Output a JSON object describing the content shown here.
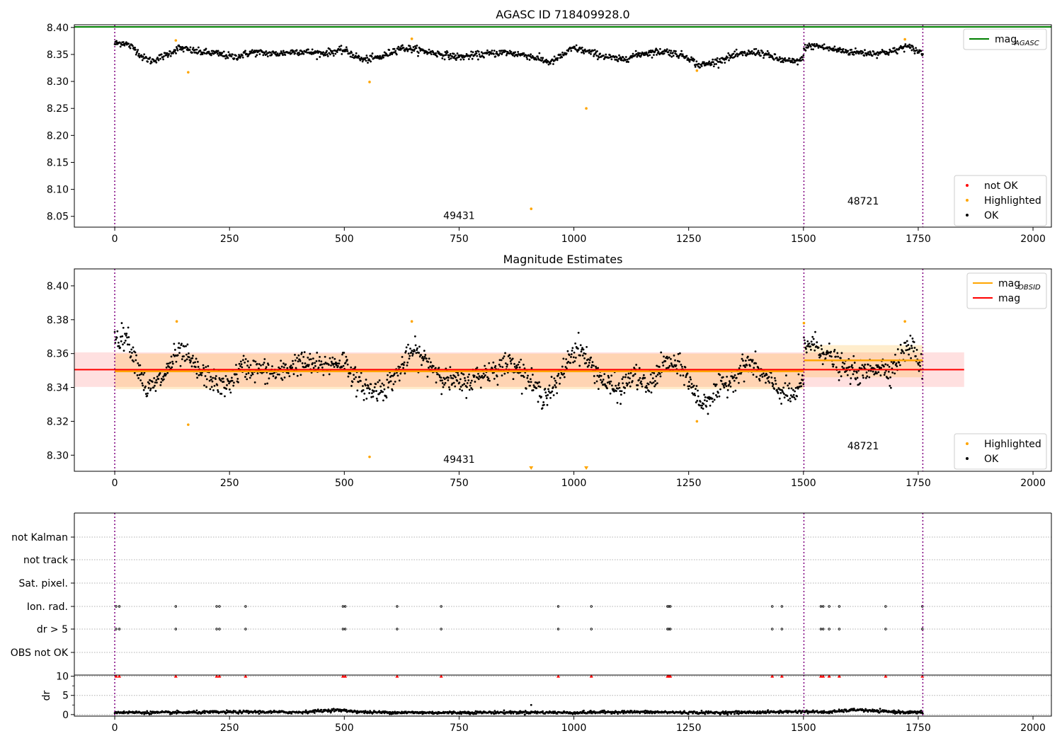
{
  "chart_data": [
    {
      "panel": "agasc-magnitude",
      "type": "scatter",
      "title": "AGASC ID 718409928.0",
      "xlim": [
        -88,
        2040
      ],
      "ylim": [
        8.03,
        8.405
      ],
      "x_ticks": [
        "0",
        "250",
        "500",
        "750",
        "1000",
        "1250",
        "1500",
        "1750",
        "2000"
      ],
      "y_ticks": [
        "8.05",
        "8.10",
        "8.15",
        "8.20",
        "8.25",
        "8.30",
        "8.35",
        "8.40"
      ],
      "grid": false,
      "legend_upper": {
        "placement": "top-right",
        "entries": [
          {
            "label": "mag",
            "sub": "AGASC",
            "color": "#008000"
          }
        ]
      },
      "legend_lower": {
        "placement": "bottom-right",
        "entries": [
          {
            "label": "not OK",
            "color": "#ff0000"
          },
          {
            "label": "Highlighted",
            "color": "#ffa500"
          },
          {
            "label": "OK",
            "color": "#000000"
          }
        ]
      },
      "mag_agasc": 8.401,
      "obsid_boundaries": [
        0,
        1501,
        1760
      ],
      "obsids": [
        {
          "label": "49431",
          "x": 750,
          "y": 8.045
        },
        {
          "label": "48721",
          "x": 1630,
          "y": 8.072
        }
      ],
      "ok_segments": [
        {
          "x": [
            0,
            20,
            45,
            60,
            80,
            110,
            140,
            180,
            220,
            260,
            300,
            350,
            400,
            450,
            500,
            540,
            580,
            620,
            650,
            700,
            750,
            800,
            850,
            900,
            950,
            1000,
            1030,
            1060,
            1100,
            1150,
            1200,
            1250,
            1270,
            1290,
            1350,
            1400,
            1450,
            1480,
            1500
          ],
          "y": [
            8.37,
            8.372,
            8.36,
            8.345,
            8.338,
            8.348,
            8.362,
            8.355,
            8.352,
            8.345,
            8.354,
            8.351,
            8.356,
            8.352,
            8.358,
            8.34,
            8.345,
            8.362,
            8.36,
            8.352,
            8.345,
            8.35,
            8.354,
            8.348,
            8.335,
            8.362,
            8.355,
            8.348,
            8.34,
            8.352,
            8.356,
            8.345,
            8.33,
            8.332,
            8.348,
            8.355,
            8.34,
            8.336,
            8.342
          ]
        },
        {
          "x": [
            1501,
            1530,
            1560,
            1600,
            1650,
            1700,
            1720,
            1740,
            1760
          ],
          "y": [
            8.364,
            8.366,
            8.36,
            8.355,
            8.352,
            8.356,
            8.365,
            8.36,
            8.352
          ]
        }
      ],
      "ok_noise": 0.0055,
      "highlighted": [
        {
          "x": 133,
          "y": 8.376
        },
        {
          "x": 160,
          "y": 8.317
        },
        {
          "x": 555,
          "y": 8.299
        },
        {
          "x": 647,
          "y": 8.379
        },
        {
          "x": 907,
          "y": 8.064
        },
        {
          "x": 1027,
          "y": 8.25
        },
        {
          "x": 1268,
          "y": 8.32
        },
        {
          "x": 1721,
          "y": 8.378
        }
      ]
    },
    {
      "panel": "magnitude-estimates",
      "type": "scatter",
      "title": "Magnitude Estimates",
      "xlim": [
        -88,
        2040
      ],
      "ylim": [
        8.2905,
        8.41
      ],
      "x_ticks": [
        "0",
        "250",
        "500",
        "750",
        "1000",
        "1250",
        "1500",
        "1750",
        "2000"
      ],
      "y_ticks": [
        "8.30",
        "8.32",
        "8.34",
        "8.36",
        "8.38",
        "8.40"
      ],
      "grid": false,
      "legend_upper": {
        "placement": "top-right",
        "entries": [
          {
            "label": "mag",
            "sub": "OBSID",
            "color": "#ffa500"
          },
          {
            "label": "mag",
            "color": "#ff0000"
          }
        ]
      },
      "legend_lower": {
        "placement": "bottom-right",
        "entries": [
          {
            "label": "Highlighted",
            "color": "#ffa500"
          },
          {
            "label": "OK",
            "color": "#000000"
          }
        ]
      },
      "mag": {
        "value": 8.3505,
        "band": [
          8.3403,
          8.3607
        ],
        "x": [
          -88,
          1850
        ]
      },
      "mag_obsid": [
        {
          "x": [
            0,
            1501
          ],
          "value": 8.3495,
          "band": [
            8.339,
            8.36
          ]
        },
        {
          "x": [
            1501,
            1760
          ],
          "value": 8.356,
          "band": [
            8.346,
            8.365
          ]
        }
      ],
      "obsid_boundaries": [
        0,
        1501,
        1760
      ],
      "obsids": [
        {
          "label": "49431",
          "x": 750,
          "y": 8.2955
        },
        {
          "label": "48721",
          "x": 1630,
          "y": 8.3035
        }
      ],
      "ok_segments": [
        {
          "x": [
            0,
            10,
            25,
            40,
            55,
            70,
            90,
            110,
            130,
            150,
            180,
            210,
            240,
            280,
            320,
            360,
            400,
            450,
            500,
            530,
            560,
            590,
            620,
            650,
            680,
            720,
            760,
            800,
            840,
            870,
            900,
            930,
            960,
            990,
            1010,
            1040,
            1070,
            1100,
            1130,
            1160,
            1200,
            1240,
            1260,
            1280,
            1300,
            1340,
            1380,
            1420,
            1450,
            1480,
            1500
          ],
          "y": [
            8.37,
            8.369,
            8.371,
            8.36,
            8.35,
            8.338,
            8.342,
            8.348,
            8.358,
            8.36,
            8.35,
            8.345,
            8.34,
            8.352,
            8.35,
            8.348,
            8.355,
            8.352,
            8.356,
            8.342,
            8.338,
            8.34,
            8.35,
            8.362,
            8.355,
            8.345,
            8.342,
            8.348,
            8.352,
            8.355,
            8.345,
            8.335,
            8.34,
            8.358,
            8.364,
            8.352,
            8.342,
            8.338,
            8.348,
            8.34,
            8.355,
            8.35,
            8.338,
            8.33,
            8.335,
            8.344,
            8.355,
            8.345,
            8.338,
            8.335,
            8.343
          ]
        },
        {
          "x": [
            1501,
            1520,
            1540,
            1560,
            1580,
            1600,
            1630,
            1660,
            1690,
            1710,
            1730,
            1745,
            1760
          ],
          "y": [
            8.365,
            8.366,
            8.362,
            8.358,
            8.352,
            8.35,
            8.348,
            8.353,
            8.35,
            8.358,
            8.365,
            8.36,
            8.35
          ]
        }
      ],
      "ok_noise": 0.0058,
      "highlighted": [
        {
          "x": 135,
          "y": 8.379
        },
        {
          "x": 160,
          "y": 8.318
        },
        {
          "x": 555,
          "y": 8.299
        },
        {
          "x": 647,
          "y": 8.379
        },
        {
          "x": 1268,
          "y": 8.32
        },
        {
          "x": 1501,
          "y": 8.378
        },
        {
          "x": 1721,
          "y": 8.379
        }
      ],
      "highlighted_below_range": [
        907,
        1027
      ]
    },
    {
      "panel": "flags",
      "type": "scatter",
      "xlim": [
        -88,
        2040
      ],
      "categories": [
        "not Kalman",
        "not track",
        "Sat. pixel.",
        "Ion. rad.",
        "dr > 5",
        "OBS not OK"
      ],
      "flag_x": [
        3,
        10,
        133,
        222,
        228,
        285,
        497,
        502,
        615,
        711,
        966,
        1038,
        1204,
        1207,
        1210,
        1432,
        1453,
        1538,
        1543,
        1556,
        1578,
        1679,
        1759
      ],
      "flagged_rows": [
        "Ion. rad.",
        "dr > 5"
      ],
      "obsid_boundaries": [
        0,
        1501,
        1760
      ]
    },
    {
      "panel": "dr",
      "type": "scatter",
      "ylabel": "dr",
      "xlim": [
        -88,
        2040
      ],
      "ylim": [
        -0.4,
        10.3
      ],
      "x_ticks": [
        "0",
        "250",
        "500",
        "750",
        "1000",
        "1250",
        "1500",
        "1750",
        "2000"
      ],
      "y_ticks": [
        "0",
        "5",
        "10"
      ],
      "dr_segments": [
        {
          "x": [
            0,
            100,
            200,
            300,
            400,
            480,
            550,
            700,
            900,
            1000,
            1100,
            1200,
            1300,
            1400,
            1500,
            1550,
            1620,
            1640,
            1700,
            1760
          ],
          "y": [
            0.6,
            0.5,
            0.6,
            0.7,
            0.6,
            1.2,
            0.6,
            0.5,
            0.6,
            0.5,
            0.7,
            0.6,
            0.5,
            0.6,
            0.8,
            0.6,
            1.3,
            1.0,
            0.7,
            0.5
          ]
        }
      ],
      "outlier": {
        "x": 907,
        "y": 2.5
      },
      "flag_x": [
        3,
        10,
        133,
        222,
        228,
        285,
        497,
        502,
        615,
        711,
        966,
        1038,
        1204,
        1207,
        1210,
        1432,
        1453,
        1538,
        1543,
        1556,
        1578,
        1679,
        1759
      ],
      "flag_y": 10,
      "obsid_boundaries": [
        0,
        1501,
        1760
      ]
    }
  ]
}
